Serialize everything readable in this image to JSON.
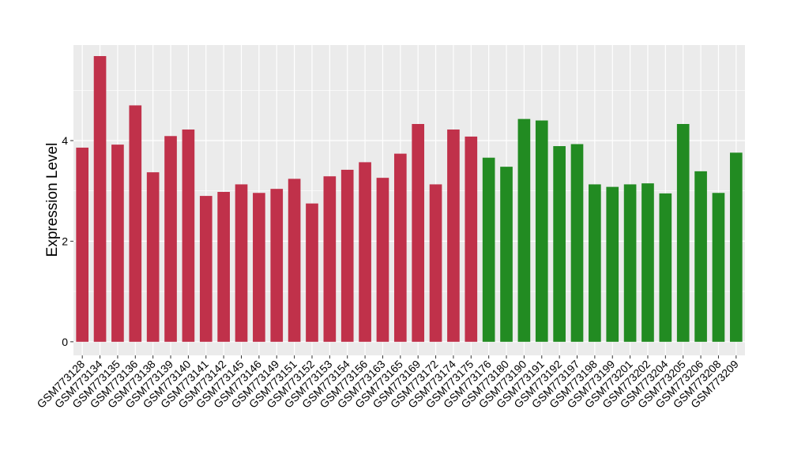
{
  "chart_data": {
    "type": "bar",
    "title": "",
    "xlabel": "",
    "ylabel": "Expression Level",
    "ylim": [
      -0.27,
      5.9
    ],
    "yticks": [
      0,
      2,
      4
    ],
    "grid": true,
    "legend": "none",
    "colors": {
      "group_a": "#C0314A",
      "group_b": "#228B22",
      "panel_bg": "#EBEBEB",
      "grid": "#FFFFFF",
      "tick_text": "#000000"
    },
    "categories": [
      "GSM773128",
      "GSM773134",
      "GSM773135",
      "GSM773136",
      "GSM773138",
      "GSM773139",
      "GSM773140",
      "GSM773141",
      "GSM773142",
      "GSM773145",
      "GSM773146",
      "GSM773149",
      "GSM773151",
      "GSM773152",
      "GSM773153",
      "GSM773154",
      "GSM773156",
      "GSM773163",
      "GSM773165",
      "GSM773169",
      "GSM773172",
      "GSM773174",
      "GSM773175",
      "GSM773176",
      "GSM773180",
      "GSM773190",
      "GSM773191",
      "GSM773192",
      "GSM773197",
      "GSM773198",
      "GSM773199",
      "GSM773201",
      "GSM773202",
      "GSM773204",
      "GSM773205",
      "GSM773206",
      "GSM773208",
      "GSM773209"
    ],
    "values": [
      3.86,
      5.68,
      3.92,
      4.7,
      3.37,
      4.09,
      4.22,
      2.9,
      2.98,
      3.13,
      2.96,
      3.04,
      3.24,
      2.75,
      3.29,
      3.42,
      3.57,
      3.26,
      3.74,
      4.33,
      3.13,
      4.22,
      4.08,
      3.66,
      3.48,
      4.43,
      4.4,
      3.89,
      3.93,
      3.13,
      3.08,
      3.13,
      3.15,
      2.95,
      4.33,
      3.39,
      2.96,
      3.76
    ],
    "groups": [
      "a",
      "a",
      "a",
      "a",
      "a",
      "a",
      "a",
      "a",
      "a",
      "a",
      "a",
      "a",
      "a",
      "a",
      "a",
      "a",
      "a",
      "a",
      "a",
      "a",
      "a",
      "a",
      "a",
      "b",
      "b",
      "b",
      "b",
      "b",
      "b",
      "b",
      "b",
      "b",
      "b",
      "b",
      "b",
      "b",
      "b",
      "b"
    ]
  }
}
